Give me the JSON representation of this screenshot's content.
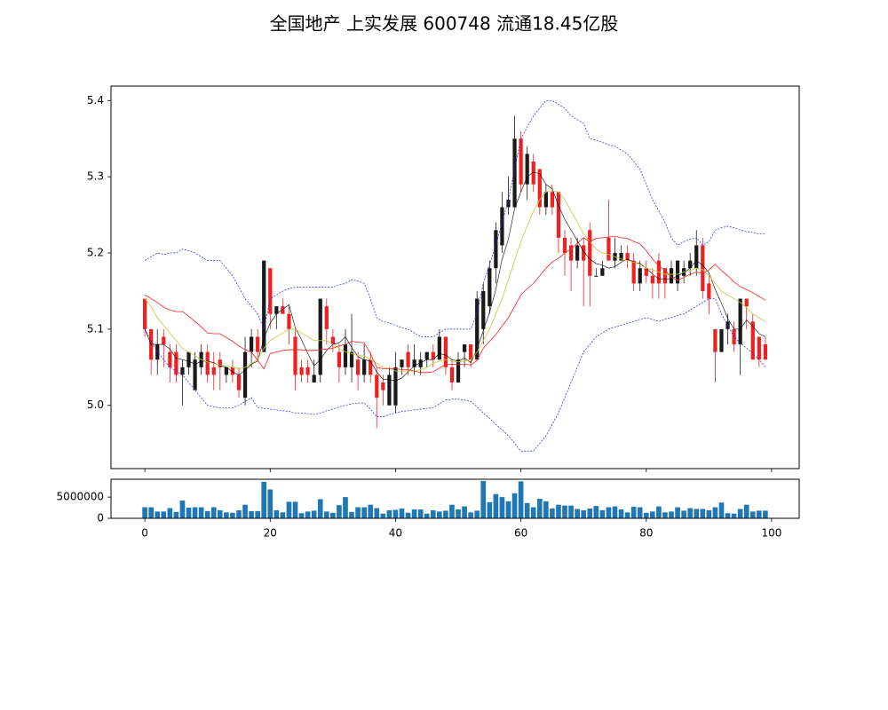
{
  "chart_data": [
    {
      "type": "candlestick",
      "title": "全国地产 上实发展 600748 流通18.45亿股",
      "x": [
        0,
        1,
        2,
        3,
        4,
        5,
        6,
        7,
        8,
        9,
        10,
        11,
        12,
        13,
        14,
        15,
        16,
        17,
        18,
        19,
        20,
        21,
        22,
        23,
        24,
        25,
        26,
        27,
        28,
        29,
        30,
        31,
        32,
        33,
        34,
        35,
        36,
        37,
        38,
        39,
        40,
        41,
        42,
        43,
        44,
        45,
        46,
        47,
        48,
        49,
        50,
        51,
        52,
        53,
        54,
        55,
        56,
        57,
        58,
        59,
        60,
        61,
        62,
        63,
        64,
        65,
        66,
        67,
        68,
        69,
        70,
        71,
        72,
        73,
        74,
        75,
        76,
        77,
        78,
        79,
        80,
        81,
        82,
        83,
        84,
        85,
        86,
        87,
        88,
        89,
        90,
        91,
        92,
        93,
        94,
        95,
        96,
        97,
        98,
        99
      ],
      "open": [
        5.14,
        5.1,
        5.06,
        5.09,
        5.07,
        5.07,
        5.04,
        5.05,
        5.02,
        5.05,
        5.07,
        5.05,
        5.06,
        5.04,
        5.05,
        5.04,
        5.01,
        5.07,
        5.09,
        5.07,
        5.18,
        5.12,
        5.13,
        5.12,
        5.09,
        5.05,
        5.05,
        5.03,
        5.04,
        5.13,
        5.09,
        5.07,
        5.05,
        5.05,
        5.06,
        5.04,
        5.06,
        5.04,
        5.03,
        5.0,
        5.0,
        5.05,
        5.07,
        5.05,
        5.05,
        5.06,
        5.07,
        5.06,
        5.09,
        5.05,
        5.03,
        5.07,
        5.08,
        5.06,
        5.1,
        5.13,
        5.18,
        5.21,
        5.26,
        5.26,
        5.35,
        5.29,
        5.32,
        5.31,
        5.26,
        5.28,
        5.28,
        5.22,
        5.21,
        5.19,
        5.21,
        5.23,
        5.17,
        5.17,
        5.22,
        5.19,
        5.19,
        5.2,
        5.19,
        5.16,
        5.18,
        5.17,
        5.19,
        5.18,
        5.16,
        5.16,
        5.17,
        5.18,
        5.18,
        5.21,
        5.16,
        5.1,
        5.07,
        5.1,
        5.1,
        5.08,
        5.14,
        5.11,
        5.09,
        5.08
      ],
      "high": [
        5.14,
        5.1,
        5.1,
        5.1,
        5.08,
        5.08,
        5.06,
        5.07,
        5.07,
        5.08,
        5.08,
        5.07,
        5.07,
        5.05,
        5.06,
        5.05,
        5.09,
        5.1,
        5.1,
        5.19,
        5.18,
        5.13,
        5.14,
        5.13,
        5.1,
        5.06,
        5.06,
        5.06,
        5.14,
        5.14,
        5.1,
        5.08,
        5.1,
        5.12,
        5.07,
        5.08,
        5.07,
        5.05,
        5.04,
        5.05,
        5.07,
        5.06,
        5.08,
        5.08,
        5.07,
        5.07,
        5.08,
        5.1,
        5.09,
        5.06,
        5.07,
        5.08,
        5.08,
        5.15,
        5.16,
        5.19,
        5.24,
        5.28,
        5.3,
        5.38,
        5.36,
        5.34,
        5.33,
        5.31,
        5.29,
        5.29,
        5.28,
        5.23,
        5.22,
        5.22,
        5.22,
        5.24,
        5.18,
        5.19,
        5.27,
        5.22,
        5.21,
        5.21,
        5.2,
        5.19,
        5.19,
        5.18,
        5.2,
        5.18,
        5.19,
        5.19,
        5.19,
        5.2,
        5.23,
        5.22,
        5.17,
        5.1,
        5.1,
        5.12,
        5.11,
        5.14,
        5.14,
        5.12,
        5.09,
        5.09
      ],
      "low": [
        5.09,
        5.04,
        5.04,
        5.05,
        5.03,
        5.03,
        5.0,
        5.04,
        5.02,
        5.04,
        5.03,
        5.02,
        5.02,
        5.03,
        5.03,
        5.01,
        5.0,
        5.05,
        5.06,
        5.07,
        5.1,
        5.1,
        5.12,
        5.08,
        5.02,
        5.03,
        5.03,
        5.03,
        5.03,
        5.08,
        5.07,
        5.03,
        5.04,
        5.03,
        5.02,
        5.03,
        5.03,
        4.97,
        5.0,
        5.0,
        4.99,
        5.04,
        5.04,
        5.04,
        5.04,
        5.05,
        5.05,
        5.06,
        5.04,
        5.02,
        5.03,
        5.05,
        5.05,
        5.06,
        5.08,
        5.12,
        5.16,
        5.2,
        5.25,
        5.26,
        5.28,
        5.27,
        5.28,
        5.25,
        5.25,
        5.25,
        5.2,
        5.17,
        5.15,
        5.18,
        5.13,
        5.13,
        5.17,
        5.17,
        5.19,
        5.18,
        5.19,
        5.18,
        5.15,
        5.15,
        5.16,
        5.14,
        5.14,
        5.14,
        5.16,
        5.15,
        5.16,
        5.17,
        5.17,
        5.14,
        5.12,
        5.03,
        5.07,
        5.08,
        5.07,
        5.04,
        5.1,
        5.06,
        5.05,
        5.06
      ],
      "close": [
        5.1,
        5.06,
        5.08,
        5.08,
        5.05,
        5.04,
        5.05,
        5.07,
        5.06,
        5.07,
        5.04,
        5.04,
        5.05,
        5.05,
        5.04,
        5.02,
        5.07,
        5.09,
        5.07,
        5.19,
        5.12,
        5.13,
        5.12,
        5.1,
        5.04,
        5.04,
        5.04,
        5.04,
        5.14,
        5.1,
        5.08,
        5.05,
        5.08,
        5.07,
        5.04,
        5.06,
        5.04,
        5.01,
        5.02,
        5.04,
        5.05,
        5.06,
        5.05,
        5.06,
        5.06,
        5.07,
        5.06,
        5.09,
        5.05,
        5.03,
        5.06,
        5.08,
        5.06,
        5.14,
        5.15,
        5.18,
        5.23,
        5.26,
        5.27,
        5.35,
        5.29,
        5.33,
        5.29,
        5.26,
        5.28,
        5.26,
        5.22,
        5.2,
        5.19,
        5.21,
        5.19,
        5.17,
        5.17,
        5.18,
        5.19,
        5.2,
        5.2,
        5.19,
        5.16,
        5.18,
        5.17,
        5.16,
        5.16,
        5.16,
        5.18,
        5.19,
        5.18,
        5.19,
        5.21,
        5.15,
        5.14,
        5.07,
        5.1,
        5.11,
        5.08,
        5.14,
        5.13,
        5.06,
        5.06,
        5.06
      ],
      "up_color": "#1a1a1a",
      "down_color": "#f02020",
      "series": [
        {
          "color": "#000000",
          "width": 0.6,
          "values": [
            5.1,
            5.08,
            5.08,
            5.08,
            5.074,
            5.062,
            5.06,
            5.058,
            5.054,
            5.058,
            5.058,
            5.056,
            5.052,
            5.05,
            5.044,
            5.04,
            5.046,
            5.054,
            5.058,
            5.088,
            5.108,
            5.12,
            5.126,
            5.132,
            5.102,
            5.086,
            5.068,
            5.052,
            5.06,
            5.072,
            5.08,
            5.082,
            5.09,
            5.076,
            5.064,
            5.06,
            5.058,
            5.044,
            5.034,
            5.034,
            5.032,
            5.036,
            5.044,
            5.052,
            5.056,
            5.06,
            5.06,
            5.068,
            5.066,
            5.06,
            5.058,
            5.062,
            5.056,
            5.074,
            5.098,
            5.122,
            5.152,
            5.192,
            5.218,
            5.258,
            5.28,
            5.3,
            5.306,
            5.304,
            5.29,
            5.284,
            5.262,
            5.244,
            5.23,
            5.216,
            5.202,
            5.192,
            5.186,
            5.184,
            5.18,
            5.182,
            5.188,
            5.192,
            5.188,
            5.186,
            5.18,
            5.172,
            5.166,
            5.166,
            5.166,
            5.17,
            5.174,
            5.18,
            5.19,
            5.184,
            5.174,
            5.152,
            5.134,
            5.114,
            5.1,
            5.1,
            5.112,
            5.104,
            5.094,
            5.09
          ]
        },
        {
          "color": "#c8c83c",
          "width": 0.8,
          "values": [
            5.14,
            5.13,
            5.115,
            5.105,
            5.095,
            5.085,
            5.075,
            5.07,
            5.065,
            5.06,
            5.057,
            5.055,
            5.053,
            5.052,
            5.05,
            5.048,
            5.05,
            5.055,
            5.06,
            5.075,
            5.085,
            5.09,
            5.095,
            5.1,
            5.1,
            5.095,
            5.09,
            5.085,
            5.085,
            5.085,
            5.08,
            5.075,
            5.07,
            5.068,
            5.065,
            5.065,
            5.06,
            5.055,
            5.05,
            5.048,
            5.045,
            5.045,
            5.045,
            5.045,
            5.047,
            5.05,
            5.055,
            5.058,
            5.06,
            5.058,
            5.057,
            5.058,
            5.06,
            5.07,
            5.085,
            5.1,
            5.12,
            5.14,
            5.165,
            5.19,
            5.215,
            5.235,
            5.255,
            5.27,
            5.28,
            5.282,
            5.28,
            5.27,
            5.255,
            5.24,
            5.225,
            5.215,
            5.205,
            5.2,
            5.198,
            5.195,
            5.192,
            5.19,
            5.188,
            5.185,
            5.18,
            5.178,
            5.175,
            5.172,
            5.172,
            5.172,
            5.175,
            5.177,
            5.18,
            5.178,
            5.17,
            5.16,
            5.15,
            5.145,
            5.14,
            5.135,
            5.128,
            5.12,
            5.115,
            5.11
          ]
        },
        {
          "color": "#ff2020",
          "width": 0.8,
          "values": [
            5.145,
            5.14,
            5.135,
            5.129,
            5.125,
            5.123,
            5.123,
            5.117,
            5.11,
            5.103,
            5.095,
            5.094,
            5.094,
            5.089,
            5.084,
            5.078,
            5.073,
            5.07,
            5.059,
            5.048,
            5.068,
            5.07,
            5.072,
            5.073,
            5.073,
            5.073,
            5.072,
            5.072,
            5.073,
            5.074,
            5.075,
            5.078,
            5.08,
            5.084,
            5.083,
            5.082,
            5.068,
            5.05,
            5.048,
            5.048,
            5.048,
            5.047,
            5.047,
            5.045,
            5.043,
            5.043,
            5.044,
            5.049,
            5.054,
            5.054,
            5.054,
            5.054,
            5.053,
            5.059,
            5.075,
            5.084,
            5.093,
            5.104,
            5.115,
            5.13,
            5.145,
            5.153,
            5.16,
            5.17,
            5.18,
            5.188,
            5.193,
            5.2,
            5.205,
            5.213,
            5.22,
            5.215,
            5.219,
            5.22,
            5.221,
            5.222,
            5.22,
            5.219,
            5.215,
            5.212,
            5.203,
            5.192,
            5.183,
            5.177,
            5.168,
            5.164,
            5.168,
            5.172,
            5.175,
            5.173,
            5.178,
            5.185,
            5.177,
            5.17,
            5.162,
            5.156,
            5.152,
            5.148,
            5.143,
            5.138
          ]
        },
        {
          "color": "#2020ff",
          "width": 0.7,
          "linestyle": "dashed",
          "values": [
            5.19,
            5.195,
            5.2,
            5.198,
            5.2,
            5.2,
            5.205,
            5.203,
            5.2,
            5.195,
            5.19,
            5.19,
            5.19,
            5.18,
            5.17,
            5.155,
            5.14,
            5.13,
            5.12,
            5.1,
            5.14,
            5.145,
            5.15,
            5.153,
            5.155,
            5.155,
            5.155,
            5.155,
            5.155,
            5.155,
            5.155,
            5.158,
            5.16,
            5.165,
            5.163,
            5.16,
            5.14,
            5.115,
            5.11,
            5.108,
            5.105,
            5.102,
            5.1,
            5.095,
            5.09,
            5.09,
            5.09,
            5.095,
            5.1,
            5.1,
            5.1,
            5.1,
            5.1,
            5.12,
            5.16,
            5.185,
            5.21,
            5.24,
            5.27,
            5.31,
            5.35,
            5.365,
            5.38,
            5.39,
            5.4,
            5.4,
            5.395,
            5.39,
            5.38,
            5.375,
            5.37,
            5.35,
            5.348,
            5.345,
            5.342,
            5.34,
            5.335,
            5.33,
            5.32,
            5.31,
            5.29,
            5.27,
            5.255,
            5.24,
            5.22,
            5.21,
            5.215,
            5.218,
            5.22,
            5.21,
            5.215,
            5.23,
            5.233,
            5.235,
            5.233,
            5.23,
            5.228,
            5.227,
            5.225,
            5.225
          ]
        },
        {
          "color": "#2020ff",
          "width": 0.7,
          "linestyle": "dashed",
          "values": [
            5.1,
            5.085,
            5.07,
            5.06,
            5.05,
            5.045,
            5.04,
            5.03,
            5.02,
            5.01,
            5.0,
            4.998,
            4.997,
            4.997,
            4.997,
            5.0,
            5.005,
            5.01,
            4.997,
            4.996,
            4.995,
            4.994,
            4.993,
            4.992,
            4.99,
            4.99,
            4.989,
            4.988,
            4.99,
            4.993,
            4.995,
            4.998,
            5.0,
            5.002,
            5.003,
            5.003,
            4.995,
            4.985,
            4.985,
            4.988,
            4.99,
            4.992,
            4.993,
            4.994,
            4.995,
            4.996,
            4.997,
            5.002,
            5.007,
            5.008,
            5.008,
            5.007,
            5.005,
            4.998,
            4.99,
            4.983,
            4.975,
            4.968,
            4.96,
            4.95,
            4.94,
            4.94,
            4.94,
            4.95,
            4.96,
            4.975,
            4.99,
            5.01,
            5.03,
            5.05,
            5.07,
            5.08,
            5.09,
            5.095,
            5.1,
            5.103,
            5.105,
            5.108,
            5.11,
            5.113,
            5.115,
            5.113,
            5.11,
            5.113,
            5.115,
            5.118,
            5.12,
            5.125,
            5.13,
            5.135,
            5.14,
            5.14,
            5.12,
            5.105,
            5.09,
            5.082,
            5.075,
            5.068,
            5.06,
            5.05
          ]
        }
      ],
      "xlim": [
        -5.4,
        104.4
      ],
      "ylim": [
        4.917,
        5.419
      ],
      "xticks": [
        0,
        20,
        40,
        60,
        80,
        100
      ],
      "yticks": [
        {
          "value": 5,
          "label": "5.0"
        },
        5.1,
        5.2,
        5.3,
        5.4
      ]
    },
    {
      "type": "bar",
      "color": "#1f77b4",
      "values": [
        2600000,
        2600000,
        1600000,
        1600000,
        2400000,
        1500000,
        4200000,
        2500000,
        2600000,
        2600000,
        1700000,
        2600000,
        1900000,
        1400000,
        1300000,
        1900000,
        3200000,
        1700000,
        1700000,
        8600000,
        6800000,
        1900000,
        1400000,
        3900000,
        3900000,
        1200000,
        1600000,
        1800000,
        4500000,
        1600000,
        1300000,
        3100000,
        5000000,
        1500000,
        2600000,
        2600000,
        3200000,
        2400000,
        1100000,
        1900000,
        2000000,
        2300000,
        1300000,
        2100000,
        2100000,
        1100000,
        1900000,
        1600000,
        1800000,
        3200000,
        2100000,
        2800000,
        1400000,
        1800000,
        8800000,
        3800000,
        5700000,
        5000000,
        4000000,
        5900000,
        8700000,
        3600000,
        2600000,
        4600000,
        4000000,
        2300000,
        3200000,
        3000000,
        3000000,
        2200000,
        1900000,
        2300000,
        2900000,
        1900000,
        2600000,
        2800000,
        2100000,
        1400000,
        2700000,
        2600000,
        1300000,
        1600000,
        2800000,
        1400000,
        1600000,
        2600000,
        1800000,
        2400000,
        2200000,
        2200000,
        1900000,
        2600000,
        3700000,
        1200000,
        1100000,
        2200000,
        3200000,
        1600000,
        1800000,
        1800000
      ],
      "xlim": [
        -5.4,
        104.4
      ],
      "ylim": [
        0,
        9200000
      ],
      "xticks": [
        0,
        20,
        40,
        60,
        80,
        100
      ],
      "yticks": [
        0,
        5000000
      ]
    }
  ]
}
